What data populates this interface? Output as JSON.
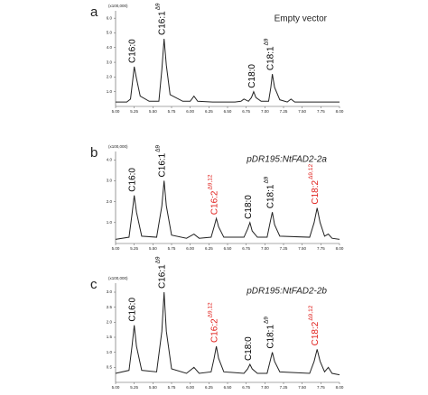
{
  "chart_data": [
    {
      "type": "line",
      "panel": "a",
      "title": "Empty vector",
      "title_style": "normal",
      "y_unit": "(x100,000)",
      "color": "#222222",
      "x": [
        5.0,
        5.15,
        5.2,
        5.23,
        5.25,
        5.28,
        5.33,
        5.45,
        5.58,
        5.62,
        5.65,
        5.68,
        5.73,
        5.9,
        6.0,
        6.05,
        6.1,
        6.3,
        6.6,
        6.68,
        6.72,
        6.78,
        6.82,
        6.85,
        6.88,
        6.95,
        7.05,
        7.08,
        7.1,
        7.13,
        7.2,
        7.3,
        7.35,
        7.4,
        7.6,
        8.0
      ],
      "values": [
        0.3,
        0.3,
        0.5,
        1.8,
        2.7,
        1.9,
        0.7,
        0.35,
        0.35,
        2.5,
        4.6,
        2.8,
        0.8,
        0.35,
        0.35,
        0.7,
        0.35,
        0.3,
        0.3,
        0.35,
        0.5,
        0.35,
        0.6,
        1.0,
        0.6,
        0.35,
        0.35,
        1.3,
        2.2,
        1.3,
        0.45,
        0.3,
        0.5,
        0.3,
        0.3,
        0.3
      ],
      "xlim": [
        5.0,
        8.0
      ],
      "xticks": [
        {
          "value": 5.0,
          "label": "5.00"
        },
        {
          "value": 5.25,
          "label": "5.25"
        },
        {
          "value": 5.5,
          "label": "5.50"
        },
        {
          "value": 5.75,
          "label": "5.75"
        },
        {
          "value": 6.0,
          "label": "6.00"
        },
        {
          "value": 6.25,
          "label": "6.25"
        },
        {
          "value": 6.5,
          "label": "6.50"
        },
        {
          "value": 6.75,
          "label": "6.75"
        },
        {
          "value": 7.0,
          "label": "7.00"
        },
        {
          "value": 7.25,
          "label": "7.25"
        },
        {
          "value": 7.5,
          "label": "7.50"
        },
        {
          "value": 7.75,
          "label": "7.75"
        },
        {
          "value": 8.0,
          "label": "8.00"
        }
      ],
      "ylim": [
        0,
        6.5
      ],
      "yticks": [
        {
          "value": 1,
          "label": "1.0"
        },
        {
          "value": 2,
          "label": "2.0"
        },
        {
          "value": 3,
          "label": "3.0"
        },
        {
          "value": 4,
          "label": "4.0"
        },
        {
          "value": 5,
          "label": "5.0"
        },
        {
          "value": 6,
          "label": "6.0"
        }
      ],
      "annotations": [
        {
          "text": "C16:0",
          "x": 5.25,
          "color": "#000000"
        },
        {
          "text": "C16:1",
          "sup": "Δ9",
          "x": 5.65,
          "color": "#000000"
        },
        {
          "text": "C18:0",
          "x": 6.85,
          "color": "#000000"
        },
        {
          "text": "C18:1",
          "sup": "Δ9",
          "x": 7.1,
          "color": "#000000"
        }
      ]
    },
    {
      "type": "line",
      "panel": "b",
      "title": "pDR195:NtFAD2-2a",
      "title_style": "italic",
      "y_unit": "(x100,000)",
      "color": "#222222",
      "x": [
        5.0,
        5.18,
        5.22,
        5.25,
        5.28,
        5.35,
        5.55,
        5.62,
        5.65,
        5.68,
        5.75,
        5.95,
        6.05,
        6.12,
        6.28,
        6.32,
        6.35,
        6.38,
        6.45,
        6.72,
        6.77,
        6.8,
        6.83,
        6.9,
        7.03,
        7.07,
        7.1,
        7.13,
        7.2,
        7.6,
        7.66,
        7.7,
        7.74,
        7.8,
        7.85,
        7.9,
        8.0
      ],
      "values": [
        0.2,
        0.3,
        1.4,
        2.3,
        1.5,
        0.35,
        0.3,
        1.8,
        3.0,
        1.8,
        0.4,
        0.25,
        0.45,
        0.25,
        0.3,
        0.8,
        1.2,
        0.8,
        0.3,
        0.3,
        0.7,
        1.0,
        0.6,
        0.3,
        0.3,
        1.0,
        1.5,
        0.9,
        0.35,
        0.3,
        1.0,
        1.7,
        1.0,
        0.35,
        0.45,
        0.25,
        0.2
      ],
      "xlim": [
        5.0,
        8.0
      ],
      "xticks": [
        {
          "value": 5.0,
          "label": "5.00"
        },
        {
          "value": 5.25,
          "label": "5.25"
        },
        {
          "value": 5.5,
          "label": "5.50"
        },
        {
          "value": 5.75,
          "label": "5.75"
        },
        {
          "value": 6.0,
          "label": "6.00"
        },
        {
          "value": 6.25,
          "label": "6.25"
        },
        {
          "value": 6.5,
          "label": "6.50"
        },
        {
          "value": 6.75,
          "label": "6.75"
        },
        {
          "value": 7.0,
          "label": "7.00"
        },
        {
          "value": 7.25,
          "label": "7.25"
        },
        {
          "value": 7.5,
          "label": "7.50"
        },
        {
          "value": 7.75,
          "label": "7.75"
        },
        {
          "value": 8.0,
          "label": "8.00"
        }
      ],
      "ylim": [
        0,
        4.4
      ],
      "yticks": [
        {
          "value": 1,
          "label": "1.0"
        },
        {
          "value": 2,
          "label": "2.0"
        },
        {
          "value": 3,
          "label": "3.0"
        },
        {
          "value": 4,
          "label": "4.0"
        }
      ],
      "annotations": [
        {
          "text": "C16:0",
          "x": 5.25,
          "color": "#000000"
        },
        {
          "text": "C16:1",
          "sup": "Δ9",
          "x": 5.65,
          "color": "#000000"
        },
        {
          "text": "C16:2",
          "sup": "Δ9,12",
          "x": 6.35,
          "color": "#e0201c"
        },
        {
          "text": "C18:0",
          "x": 6.8,
          "color": "#000000"
        },
        {
          "text": "C18:1",
          "sup": "Δ9",
          "x": 7.1,
          "color": "#000000"
        },
        {
          "text": "C18:2",
          "sup": "Δ9,12",
          "x": 7.7,
          "color": "#e0201c"
        }
      ]
    },
    {
      "type": "line",
      "panel": "c",
      "title": "pDR195:NtFAD2-2b",
      "title_style": "italic",
      "y_unit": "(x100,000)",
      "color": "#222222",
      "x": [
        5.0,
        5.18,
        5.22,
        5.25,
        5.28,
        5.35,
        5.55,
        5.62,
        5.65,
        5.68,
        5.75,
        5.95,
        6.05,
        6.12,
        6.28,
        6.32,
        6.35,
        6.38,
        6.45,
        6.72,
        6.77,
        6.8,
        6.83,
        6.9,
        7.03,
        7.07,
        7.1,
        7.13,
        7.2,
        7.6,
        7.66,
        7.7,
        7.74,
        7.8,
        7.85,
        7.9,
        8.0
      ],
      "values": [
        0.3,
        0.4,
        1.2,
        1.9,
        1.2,
        0.4,
        0.35,
        1.7,
        3.0,
        1.7,
        0.45,
        0.3,
        0.5,
        0.3,
        0.35,
        0.8,
        1.2,
        0.8,
        0.35,
        0.3,
        0.45,
        0.6,
        0.45,
        0.3,
        0.3,
        0.7,
        1.0,
        0.7,
        0.35,
        0.3,
        0.7,
        1.1,
        0.7,
        0.35,
        0.5,
        0.3,
        0.25
      ],
      "xlim": [
        5.0,
        8.0
      ],
      "xticks": [
        {
          "value": 5.0,
          "label": "5.00"
        },
        {
          "value": 5.25,
          "label": "5.25"
        },
        {
          "value": 5.5,
          "label": "5.50"
        },
        {
          "value": 5.75,
          "label": "5.75"
        },
        {
          "value": 6.0,
          "label": "6.00"
        },
        {
          "value": 6.25,
          "label": "6.25"
        },
        {
          "value": 6.5,
          "label": "6.50"
        },
        {
          "value": 6.75,
          "label": "6.75"
        },
        {
          "value": 7.0,
          "label": "7.00"
        },
        {
          "value": 7.25,
          "label": "7.25"
        },
        {
          "value": 7.5,
          "label": "7.50"
        },
        {
          "value": 7.75,
          "label": "7.75"
        },
        {
          "value": 8.0,
          "label": "8.00"
        }
      ],
      "ylim": [
        0,
        3.3
      ],
      "yticks": [
        {
          "value": 0.5,
          "label": "0.5"
        },
        {
          "value": 1,
          "label": "1.0"
        },
        {
          "value": 1.5,
          "label": "1.5"
        },
        {
          "value": 2,
          "label": "2.0"
        },
        {
          "value": 2.5,
          "label": "2.5"
        },
        {
          "value": 3,
          "label": "3.0"
        }
      ],
      "annotations": [
        {
          "text": "C16:0",
          "x": 5.25,
          "color": "#000000"
        },
        {
          "text": "C16:1",
          "sup": "Δ9",
          "x": 5.65,
          "color": "#000000"
        },
        {
          "text": "C16:2",
          "sup": "Δ9,12",
          "x": 6.35,
          "color": "#e0201c"
        },
        {
          "text": "C18:0",
          "x": 6.8,
          "color": "#000000"
        },
        {
          "text": "C18:1",
          "sup": "Δ9",
          "x": 7.1,
          "color": "#000000"
        },
        {
          "text": "C18:2",
          "sup": "Δ9,12",
          "x": 7.7,
          "color": "#e0201c"
        }
      ]
    }
  ]
}
